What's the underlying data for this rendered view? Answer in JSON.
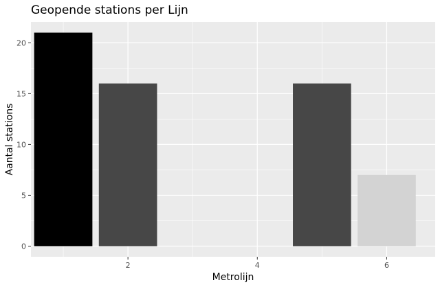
{
  "chart_data": {
    "type": "bar",
    "title": "Geopende stations per Lijn",
    "xlabel": "Metrolijn",
    "ylabel": "Aantal stations",
    "x": [
      1,
      2,
      5,
      6
    ],
    "values": [
      21,
      16,
      16,
      7
    ],
    "bar_colors": [
      "#000000",
      "#474747",
      "#474747",
      "#d3d3d3"
    ],
    "xlim": [
      0.5,
      6.75
    ],
    "ylim": [
      -1.05,
      22.05
    ],
    "x_ticks": [
      2,
      4,
      6
    ],
    "y_ticks": [
      0,
      5,
      10,
      15,
      20
    ],
    "grid": true,
    "legend": "none",
    "panel_color": "#ebebeb",
    "grid_color": "#ffffff"
  }
}
